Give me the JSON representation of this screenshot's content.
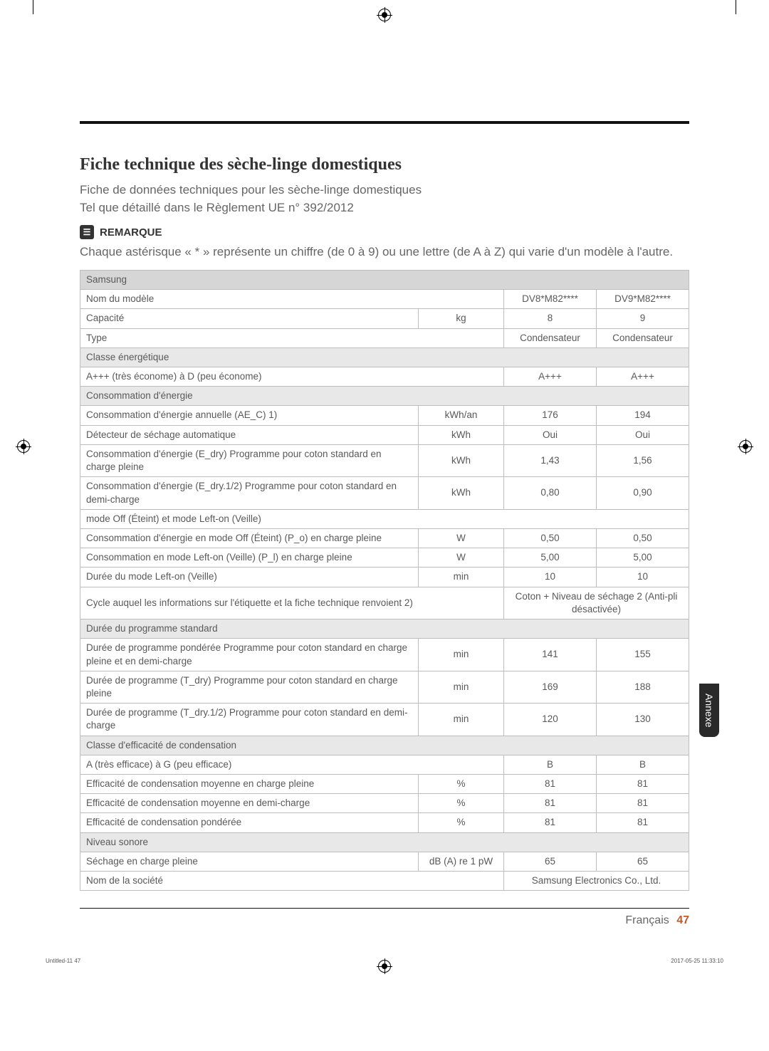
{
  "title": "Fiche technique des sèche-linge domestiques",
  "subtitle1": "Fiche de données techniques pour les sèche-linge domestiques",
  "subtitle2": "Tel que détaillé dans le Règlement UE n° 392/2012",
  "remark_label": "REMARQUE",
  "remark_text": "Chaque astérisque « * » représente un chiffre (de 0 à 9) ou une lettre (de A à Z) qui varie d'un modèle à l'autre.",
  "brand": "Samsung",
  "model_row_label": "Nom du modèle",
  "models": [
    "DV8*M82****",
    "DV9*M82****"
  ],
  "rows_top": [
    {
      "label": "Capacité",
      "unit": "kg",
      "v1": "8",
      "v2": "9"
    },
    {
      "label": "Type",
      "unit": "",
      "v1": "Condensateur",
      "v2": "Condensateur"
    }
  ],
  "sections": {
    "energy_class": {
      "title": "Classe énergétique",
      "rows": [
        {
          "label": "A+++ (très économe) à D (peu économe)",
          "unit": "",
          "v1": "A+++",
          "v2": "A+++"
        }
      ]
    },
    "energy": {
      "title": "Consommation d'énergie",
      "rows": [
        {
          "label": "Consommation d'énergie annuelle (AE_C) 1)",
          "unit": "kWh/an",
          "v1": "176",
          "v2": "194"
        },
        {
          "label": "Détecteur de séchage automatique",
          "unit": "kWh",
          "v1": "Oui",
          "v2": "Oui"
        },
        {
          "label": "Consommation d'énergie (E_dry) Programme pour coton standard en charge pleine",
          "unit": "kWh",
          "v1": "1,43",
          "v2": "1,56"
        },
        {
          "label": "Consommation d'énergie (E_dry.1/2) Programme pour coton standard en demi-charge",
          "unit": "kWh",
          "v1": "0,80",
          "v2": "0,90"
        },
        {
          "label": "mode Off (Éteint) et mode Left-on (Veille)",
          "full": true
        },
        {
          "label": "Consommation d'énergie en mode Off (Éteint) (P_o) en charge pleine",
          "unit": "W",
          "v1": "0,50",
          "v2": "0,50"
        },
        {
          "label": "Consommation en mode Left-on (Veille) (P_l) en charge pleine",
          "unit": "W",
          "v1": "5,00",
          "v2": "5,00"
        },
        {
          "label": "Durée du mode Left-on (Veille)",
          "unit": "min",
          "v1": "10",
          "v2": "10"
        },
        {
          "label": "Cycle auquel les informations sur l'étiquette et la fiche technique renvoient 2)",
          "span2": true,
          "vmerged": "Coton + Niveau de séchage 2 (Anti-pli désactivée)"
        }
      ]
    },
    "duration": {
      "title": "Durée du programme standard",
      "rows": [
        {
          "label": "Durée de programme pondérée Programme pour coton standard en charge pleine et en demi-charge",
          "unit": "min",
          "v1": "141",
          "v2": "155"
        },
        {
          "label": "Durée de programme (T_dry) Programme pour coton standard en charge pleine",
          "unit": "min",
          "v1": "169",
          "v2": "188"
        },
        {
          "label": "Durée de programme (T_dry.1/2) Programme pour coton standard en demi-charge",
          "unit": "min",
          "v1": "120",
          "v2": "130"
        }
      ]
    },
    "condensation": {
      "title": "Classe d'efficacité de condensation",
      "rows": [
        {
          "label": "A (très efficace) à G (peu efficace)",
          "unit": "",
          "v1": "B",
          "v2": "B"
        },
        {
          "label": "Efficacité de condensation moyenne en charge pleine",
          "unit": "%",
          "v1": "81",
          "v2": "81"
        },
        {
          "label": "Efficacité de condensation moyenne en demi-charge",
          "unit": "%",
          "v1": "81",
          "v2": "81"
        },
        {
          "label": "Efficacité de condensation pondérée",
          "unit": "%",
          "v1": "81",
          "v2": "81"
        }
      ]
    },
    "sound": {
      "title": "Niveau sonore",
      "rows": [
        {
          "label": "Séchage en charge pleine",
          "unit": "dB (A) re 1 pW",
          "v1": "65",
          "v2": "65"
        },
        {
          "label": "Nom de la société",
          "span2label": true,
          "vmerged": "Samsung Electronics Co., Ltd."
        }
      ]
    }
  },
  "side_tab": "Annexe",
  "footer_lang": "Français",
  "footer_page": "47",
  "tiny_left": "Untitled-11   47",
  "tiny_right": "2017-05-25   11:33:10",
  "colors": {
    "header_bg": "#d6d6d6",
    "section_bg": "#e8e8e8",
    "border": "#bdbdbd",
    "text": "#595959",
    "accent_num": "#c25a2b",
    "tab_bg": "#2a2a2a"
  }
}
